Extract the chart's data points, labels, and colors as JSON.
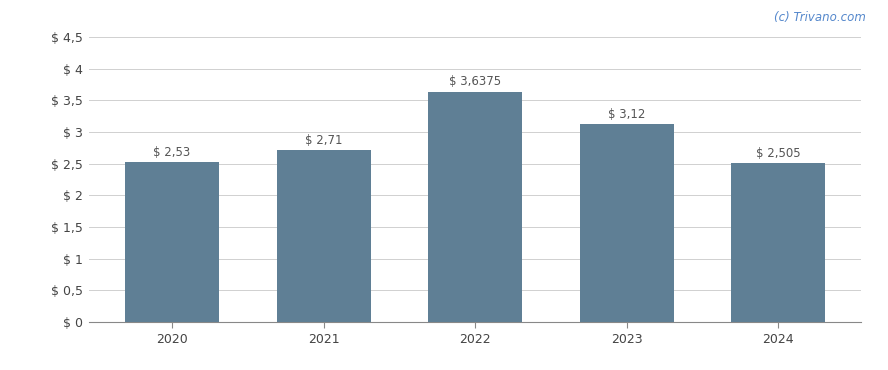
{
  "categories": [
    "2020",
    "2021",
    "2022",
    "2023",
    "2024"
  ],
  "values": [
    2.53,
    2.71,
    3.6375,
    3.12,
    2.505
  ],
  "labels": [
    "$ 2,53",
    "$ 2,71",
    "$ 3,6375",
    "$ 3,12",
    "$ 2,505"
  ],
  "bar_color": "#5f7f95",
  "background_color": "#ffffff",
  "grid_color": "#d0d0d0",
  "ylim": [
    0,
    4.5
  ],
  "yticks": [
    0,
    0.5,
    1.0,
    1.5,
    2.0,
    2.5,
    3.0,
    3.5,
    4.0,
    4.5
  ],
  "ytick_labels": [
    "$ 0",
    "$ 0,5",
    "$ 1",
    "$ 1,5",
    "$ 2",
    "$ 2,5",
    "$ 3",
    "$ 3,5",
    "$ 4",
    "$ 4,5"
  ],
  "watermark": "(c) Trivano.com",
  "watermark_color": "#5588cc",
  "label_color": "#555555",
  "label_fontsize": 8.5,
  "tick_fontsize": 9,
  "bar_width": 0.62
}
